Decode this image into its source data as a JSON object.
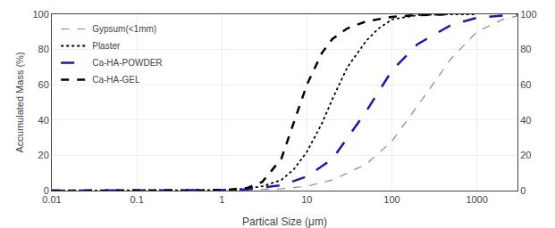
{
  "chart_data": {
    "type": "line",
    "xlabel": "Partical Size (μm)",
    "ylabel": "Accumulated Mass (%)",
    "log": "x",
    "xlim": [
      0.01,
      3000
    ],
    "xticks": [
      0.01,
      0.1,
      1,
      10,
      100,
      1000
    ],
    "ylim": [
      0,
      100
    ],
    "yticks": [
      0,
      20,
      40,
      60,
      80,
      100
    ],
    "y2lim": [
      0,
      100
    ],
    "y2ticks": [
      0,
      20,
      40,
      60,
      80,
      100
    ],
    "grid": true,
    "legend": "upper left",
    "series": [
      {
        "name": "Gypsum(<1mm)",
        "color": "#888888",
        "line_style": "dashed",
        "x": [
          0.01,
          0.05,
          0.1,
          0.5,
          1.0,
          2.0,
          5.0,
          10.0,
          20.0,
          50.0,
          100.0,
          200.0,
          500.0,
          1000.0,
          2000.0,
          3000.0
        ],
        "values": [
          0.0,
          0.0,
          0.0,
          0.1,
          0.2,
          0.4,
          1.0,
          2.5,
          6.0,
          15.0,
          28.0,
          48.0,
          75.0,
          90.0,
          97.0,
          99.0
        ]
      },
      {
        "name": "Plaster",
        "color": "#000000",
        "line_style": "dotted",
        "x": [
          0.01,
          0.05,
          0.1,
          0.5,
          1.0,
          2.0,
          3.0,
          5.0,
          7.0,
          10.0,
          15.0,
          20.0,
          30.0,
          50.0,
          70.0,
          100.0,
          200.0,
          500.0,
          1000.0
        ],
        "values": [
          0.0,
          0.0,
          0.0,
          0.1,
          0.3,
          1.0,
          2.5,
          6.0,
          12.0,
          22.0,
          38.0,
          52.0,
          70.0,
          85.0,
          92.0,
          97.0,
          99.5,
          100.0,
          100.0
        ]
      },
      {
        "name": "Ca-HA-POWDER",
        "color": "#1a1aaa",
        "line_style": "long_dashed",
        "x": [
          0.01,
          0.05,
          0.1,
          0.5,
          1.0,
          2.0,
          5.0,
          10.0,
          20.0,
          50.0,
          100.0,
          200.0,
          500.0,
          1000.0,
          2000.0,
          3000.0
        ],
        "values": [
          0.0,
          0.0,
          0.0,
          0.1,
          0.3,
          0.8,
          3.0,
          8.0,
          18.0,
          45.0,
          68.0,
          83.0,
          94.0,
          98.0,
          99.5,
          100.0
        ]
      },
      {
        "name": "Ca-HA-GEL",
        "color": "#000000",
        "line_style": "bold_dashed",
        "x": [
          0.01,
          0.05,
          0.1,
          0.5,
          1.0,
          2.0,
          3.0,
          5.0,
          7.0,
          10.0,
          15.0,
          20.0,
          30.0,
          50.0,
          100.0,
          200.0,
          500.0
        ],
        "values": [
          0.0,
          0.0,
          0.0,
          0.0,
          0.2,
          1.5,
          5.0,
          18.0,
          38.0,
          60.0,
          78.0,
          86.0,
          92.0,
          96.0,
          98.5,
          99.5,
          100.0
        ]
      }
    ]
  }
}
